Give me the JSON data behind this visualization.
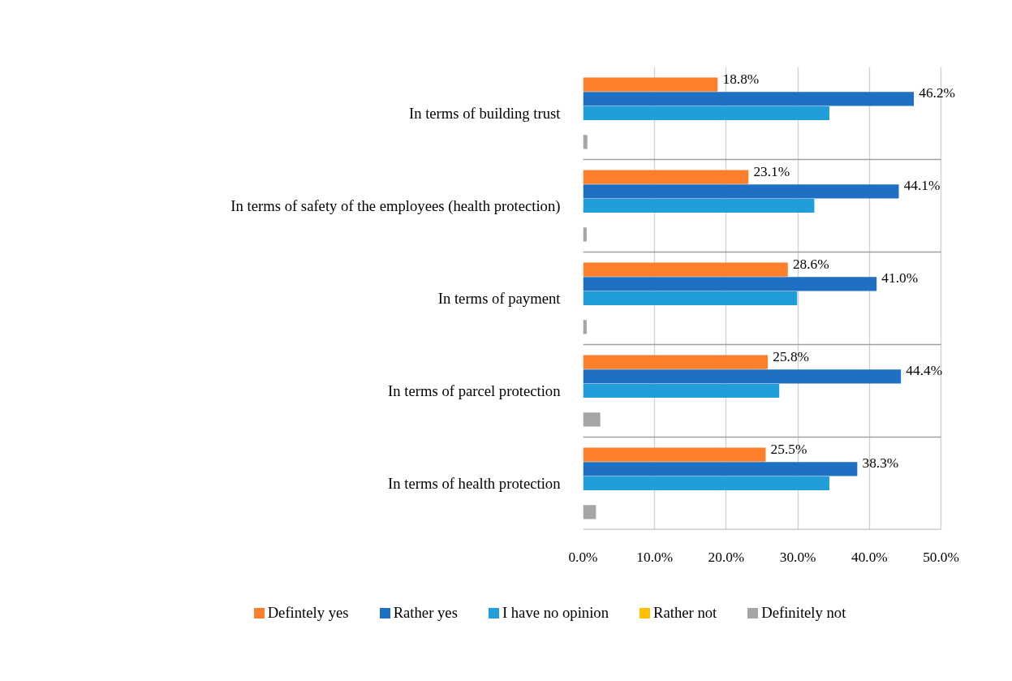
{
  "chart_data": {
    "type": "bar",
    "orientation": "horizontal",
    "categories": [
      "In terms of building trust",
      "In terms of safety of the employees (health protection)",
      "In terms of payment",
      "In terms of parcel protection",
      "In terms of health protection"
    ],
    "series": [
      {
        "name": "Defintely yes",
        "color": "#fd7f2c",
        "values": [
          18.8,
          23.1,
          28.6,
          25.8,
          25.5
        ],
        "value_labels": [
          "18.8%",
          "23.1%",
          "28.6%",
          "25.8%",
          "25.5%"
        ]
      },
      {
        "name": "Rather yes",
        "color": "#1f6fc5",
        "values": [
          46.2,
          44.1,
          41.0,
          44.4,
          38.3
        ],
        "value_labels": [
          "46.2%",
          "44.1%",
          "41.0%",
          "44.4%",
          "38.3%"
        ]
      },
      {
        "name": "I have no opinion",
        "color": "#219ed9",
        "values": [
          34.4,
          32.3,
          29.9,
          27.4,
          34.4
        ]
      },
      {
        "name": "Rather not",
        "color": "#ffc000",
        "values": [
          0,
          0,
          0,
          0,
          0
        ]
      },
      {
        "name": "Definitely not",
        "color": "#a5a5a5",
        "values": [
          0.6,
          0.5,
          0.5,
          2.4,
          1.8
        ]
      }
    ],
    "xlim": [
      0,
      50
    ],
    "xticks": [
      {
        "value": 0,
        "label": "0.0%"
      },
      {
        "value": 10,
        "label": "10.0%"
      },
      {
        "value": 20,
        "label": "20.0%"
      },
      {
        "value": 30,
        "label": "30.0%"
      },
      {
        "value": 40,
        "label": "40.0%"
      },
      {
        "value": 50,
        "label": "50.0%"
      }
    ],
    "grid": true,
    "legend": "bottom"
  }
}
